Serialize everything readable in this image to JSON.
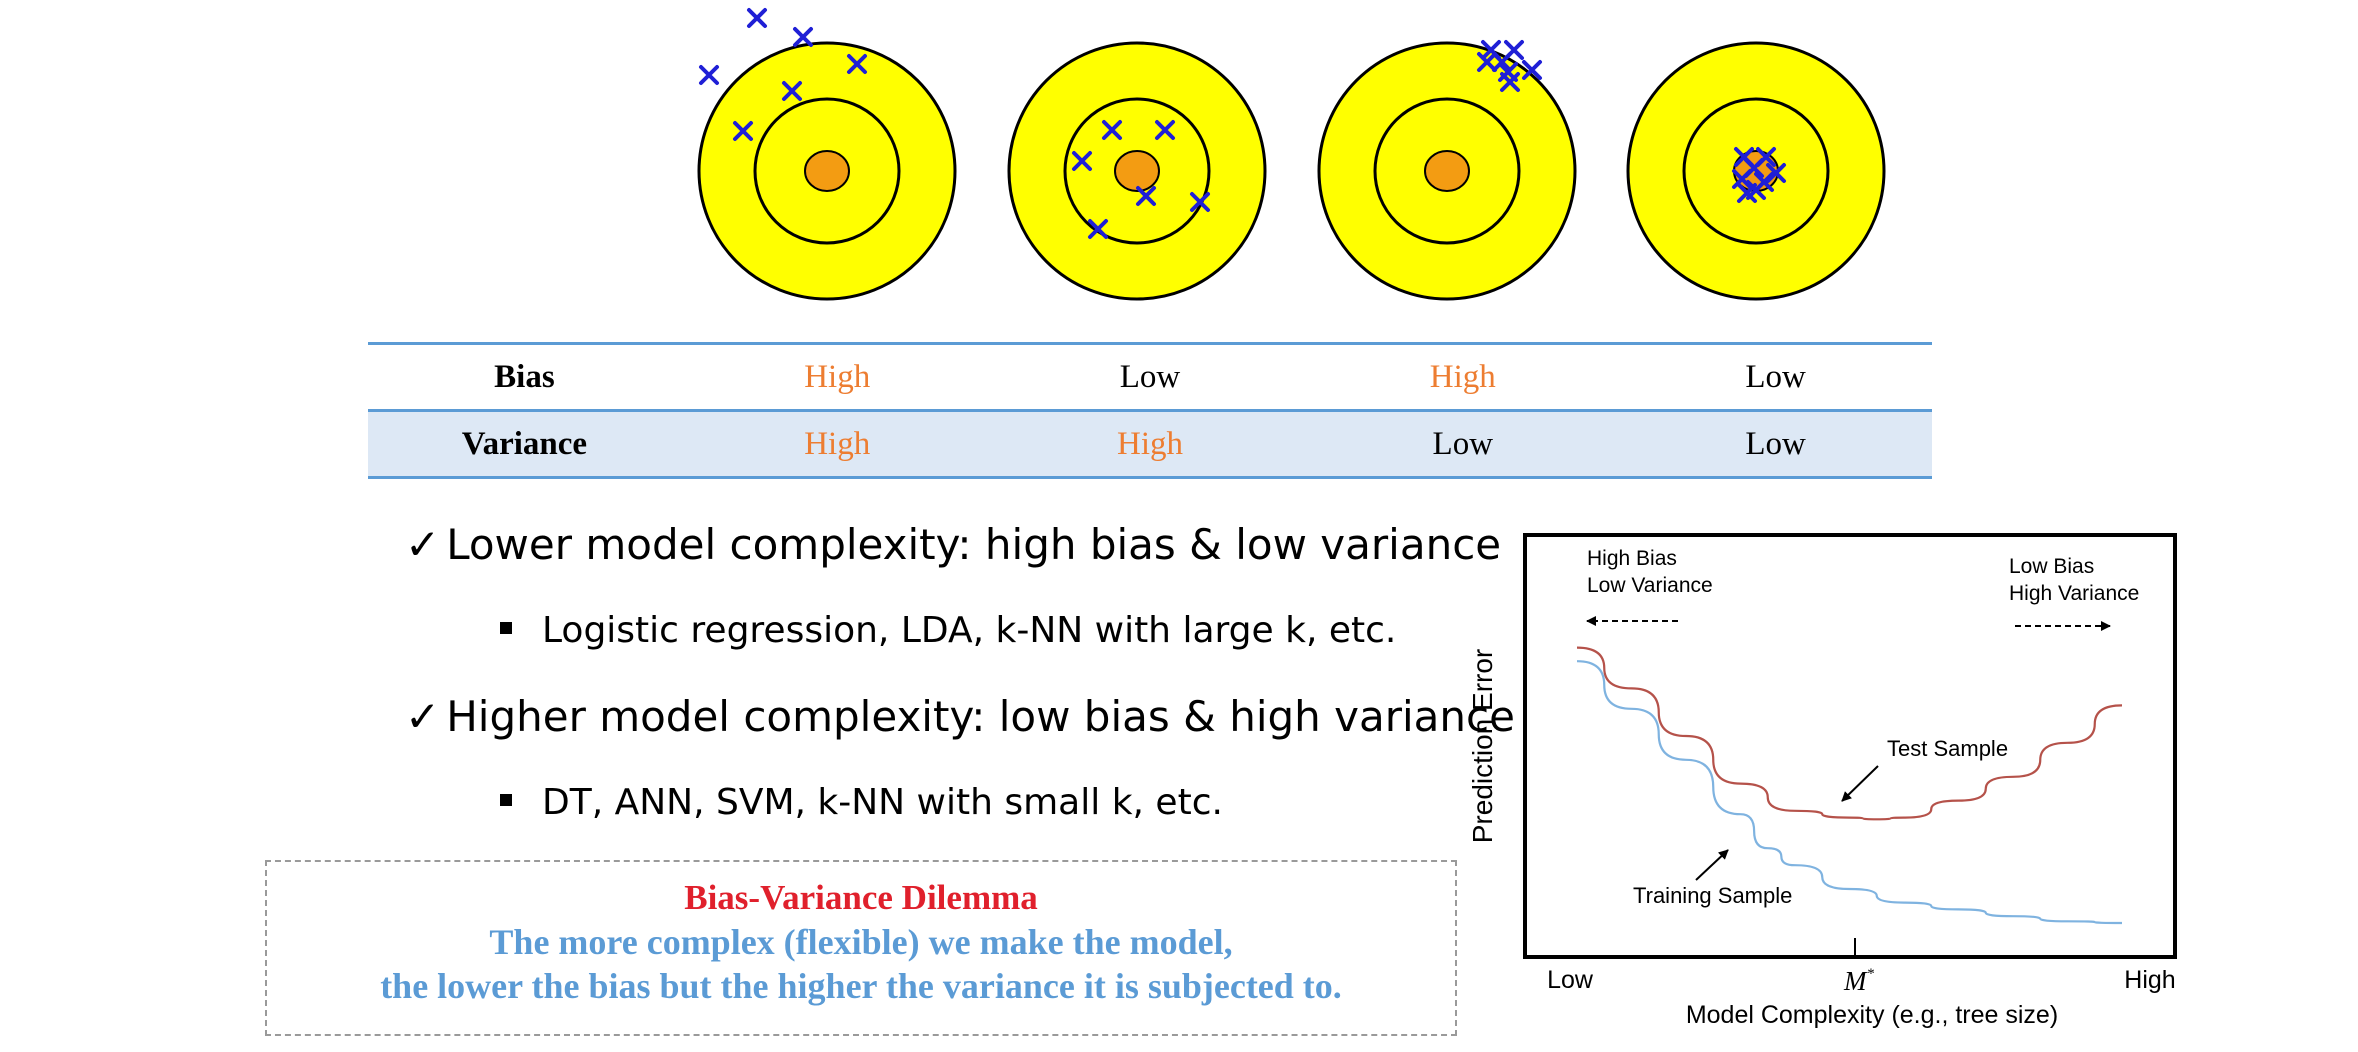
{
  "table": {
    "row_labels": [
      "Bias",
      "Variance"
    ],
    "columns": [
      {
        "bias": "High",
        "variance": "High"
      },
      {
        "bias": "Low",
        "variance": "High"
      },
      {
        "bias": "High",
        "variance": "Low"
      },
      {
        "bias": "Low",
        "variance": "Low"
      }
    ]
  },
  "bullets": [
    {
      "check": "✓",
      "text": "Lower model complexity: high bias & low variance"
    },
    {
      "sub": "Logistic regression, LDA, k-NN with large k, etc."
    },
    {
      "check": "✓",
      "text": "Higher model complexity: low bias & high variance"
    },
    {
      "sub": "DT, ANN, SVM, k-NN with small k, etc."
    }
  ],
  "dilemma": {
    "title": "Bias-Variance Dilemma",
    "line1": "The more complex (flexible) we make the model,",
    "line2": "the lower the bias but the higher the variance it is subjected to."
  },
  "colors": {
    "target_yellow": "#ffff00",
    "bullseye_orange": "#f39c12",
    "cross_blue": "#1f1fd6",
    "highlight_orange": "#ed7d31",
    "table_blue": "#5b9bd5",
    "table_fill": "#dde8f5",
    "test_curve": "#b5524a",
    "train_curve": "#7fb3e0",
    "dilemma_red": "#e0202c",
    "dilemma_blue": "#5b9bd5"
  },
  "plot": {
    "ylabel": "Prediction Error",
    "xlabel": "Model Complexity (e.g., tree size)",
    "x_low": "Low",
    "x_high": "High",
    "x_marker": "M*",
    "left_annot": [
      "High Bias",
      "Low Variance"
    ],
    "right_annot": [
      "Low Bias",
      "High Variance"
    ],
    "test_label": "Test Sample",
    "train_label": "Training Sample"
  },
  "chart_data": {
    "type": "line",
    "xlabel": "Model Complexity (e.g., tree size)",
    "ylabel": "Prediction Error",
    "x_tick_labels": [
      "Low",
      "M*",
      "High"
    ],
    "series": [
      {
        "name": "Test Sample",
        "x": [
          0.0,
          0.1,
          0.2,
          0.3,
          0.4,
          0.5,
          0.55,
          0.6,
          0.7,
          0.8,
          0.9,
          1.0
        ],
        "y": [
          0.86,
          0.74,
          0.6,
          0.46,
          0.38,
          0.36,
          0.355,
          0.36,
          0.41,
          0.48,
          0.58,
          0.69
        ]
      },
      {
        "name": "Training Sample",
        "x": [
          0.0,
          0.1,
          0.2,
          0.3,
          0.35,
          0.4,
          0.5,
          0.6,
          0.7,
          0.8,
          0.9,
          1.0
        ],
        "y": [
          0.82,
          0.68,
          0.53,
          0.37,
          0.27,
          0.22,
          0.15,
          0.11,
          0.09,
          0.07,
          0.055,
          0.05
        ]
      }
    ]
  }
}
